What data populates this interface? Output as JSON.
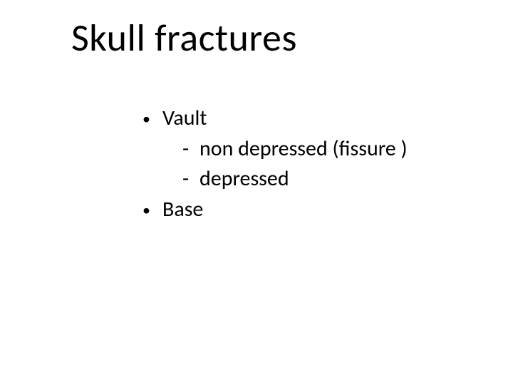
{
  "slide": {
    "title": "Skull fractures",
    "items": [
      {
        "label": "Vault",
        "subs": [
          "non depressed  (fissure )",
          "depressed"
        ]
      },
      {
        "label": "Base",
        "subs": []
      }
    ],
    "styling": {
      "background_color": "#ffffff",
      "text_color": "#000000",
      "title_fontsize": 54,
      "body_fontsize": 30,
      "font_family": "Calibri",
      "bullet_char": "•",
      "dash_char": "-"
    }
  }
}
